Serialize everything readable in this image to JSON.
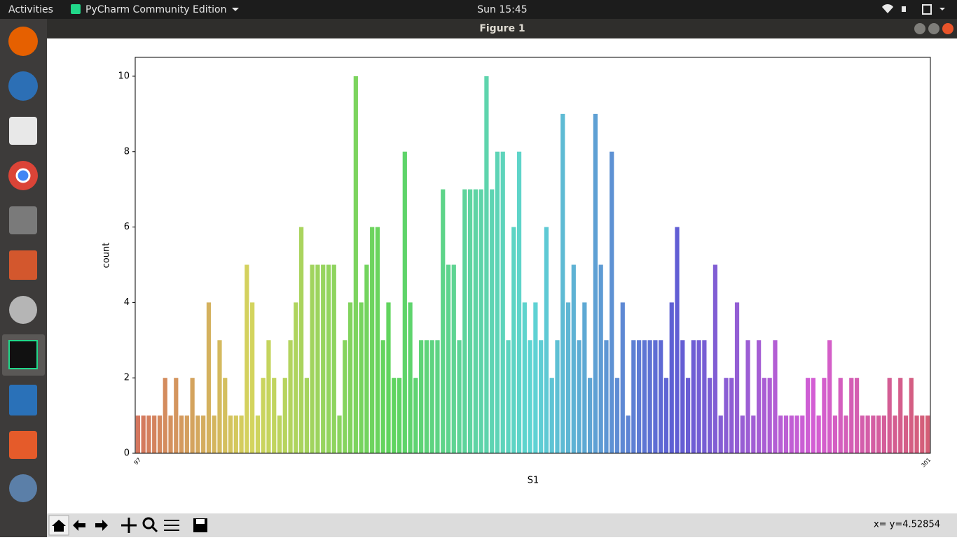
{
  "top_bar": {
    "activities": "Activities",
    "app": "PyCharm Community Edition",
    "clock": "Sun 15:45"
  },
  "window": {
    "title": "Figure 1"
  },
  "status": "x= y=4.52854",
  "chart_data": {
    "type": "bar",
    "palette": "husl",
    "xlabel": "S1",
    "ylabel": "count",
    "ylim": [
      0,
      10.5
    ],
    "yticks": [
      0,
      2,
      4,
      6,
      8,
      10
    ],
    "grid": false,
    "categories": [
      "97",
      null,
      null,
      null,
      null,
      null,
      null,
      null,
      null,
      null,
      null,
      null,
      null,
      null,
      null,
      null,
      null,
      null,
      null,
      null,
      null,
      null,
      null,
      null,
      null,
      null,
      null,
      null,
      null,
      null,
      null,
      null,
      null,
      null,
      null,
      null,
      null,
      null,
      null,
      null,
      null,
      null,
      null,
      null,
      null,
      null,
      null,
      null,
      null,
      null,
      null,
      null,
      null,
      null,
      null,
      null,
      null,
      null,
      null,
      null,
      null,
      null,
      null,
      null,
      null,
      null,
      null,
      null,
      null,
      null,
      null,
      null,
      null,
      null,
      null,
      null,
      null,
      null,
      null,
      null,
      null,
      null,
      null,
      null,
      null,
      null,
      null,
      null,
      null,
      null,
      null,
      null,
      null,
      null,
      null,
      null,
      null,
      null,
      null,
      null,
      null,
      null,
      null,
      null,
      null,
      null,
      null,
      null,
      null,
      null,
      null,
      null,
      null,
      null,
      null,
      null,
      null,
      null,
      null,
      null,
      null,
      null,
      null,
      null,
      null,
      null,
      null,
      null,
      null,
      null,
      null,
      null,
      null,
      null,
      null,
      null,
      null,
      null,
      null,
      null,
      null,
      null,
      null,
      null,
      null,
      "301"
    ],
    "values": [
      1,
      1,
      1,
      1,
      1,
      2,
      1,
      2,
      1,
      1,
      2,
      1,
      1,
      4,
      1,
      3,
      2,
      1,
      1,
      1,
      5,
      4,
      1,
      2,
      3,
      2,
      1,
      2,
      3,
      4,
      6,
      2,
      5,
      5,
      5,
      5,
      5,
      1,
      3,
      4,
      10,
      4,
      5,
      6,
      6,
      3,
      4,
      2,
      2,
      8,
      4,
      2,
      3,
      3,
      3,
      3,
      7,
      5,
      5,
      3,
      7,
      7,
      7,
      7,
      10,
      7,
      8,
      8,
      3,
      6,
      8,
      4,
      3,
      4,
      3,
      6,
      2,
      3,
      9,
      4,
      5,
      3,
      4,
      2,
      9,
      5,
      3,
      8,
      2,
      4,
      1,
      3,
      3,
      3,
      3,
      3,
      3,
      2,
      4,
      6,
      3,
      2,
      3,
      3,
      3,
      2,
      5,
      1,
      2,
      2,
      4,
      1,
      3,
      1,
      3,
      2,
      2,
      3,
      1,
      1,
      1,
      1,
      1,
      2,
      2,
      1,
      2,
      3,
      1,
      2,
      1,
      2,
      2,
      1,
      1,
      1,
      1,
      1,
      2,
      1,
      2,
      1,
      2,
      1,
      1,
      1
    ]
  }
}
